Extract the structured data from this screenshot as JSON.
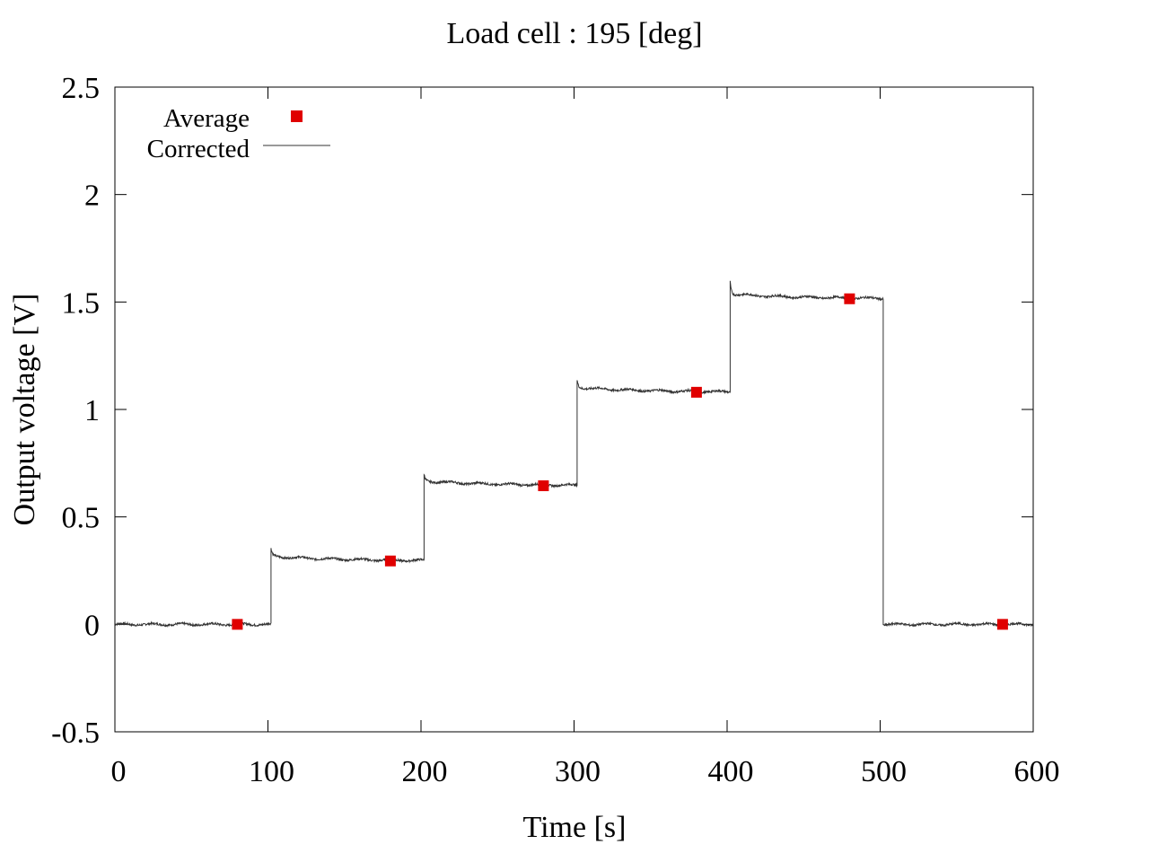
{
  "chart_data": {
    "type": "line",
    "title": "Load cell : 195 [deg]",
    "xlabel": "Time [s]",
    "ylabel": "Output voltage [V]",
    "xlim": [
      0,
      600
    ],
    "ylim": [
      -0.5,
      2.5
    ],
    "xticks": [
      0,
      100,
      200,
      300,
      400,
      500,
      600
    ],
    "yticks": [
      -0.5,
      0,
      0.5,
      1,
      1.5,
      2,
      2.5
    ],
    "xtick_labels": [
      "0",
      "100",
      "200",
      "300",
      "400",
      "500",
      "600"
    ],
    "ytick_labels": [
      "-0.5",
      "0",
      "0.5",
      "1",
      "1.5",
      "2",
      "2.5"
    ],
    "grid": false,
    "legend_position": "top-left",
    "series": [
      {
        "name": "Average",
        "type": "scatter",
        "marker": "square",
        "color": "#e00000",
        "x": [
          80,
          180,
          280,
          380,
          480,
          580
        ],
        "y": [
          0.0,
          0.295,
          0.645,
          1.08,
          1.515,
          0.0
        ]
      },
      {
        "name": "Corrected",
        "type": "line",
        "color": "#333333",
        "steps": [
          {
            "start": 0,
            "end": 102,
            "level": 0.0,
            "peak": null
          },
          {
            "start": 102,
            "end": 202,
            "level": 0.295,
            "peak": 0.355
          },
          {
            "start": 202,
            "end": 302,
            "level": 0.645,
            "peak": 0.695
          },
          {
            "start": 302,
            "end": 402,
            "level": 1.08,
            "peak": 1.14
          },
          {
            "start": 402,
            "end": 502,
            "level": 1.515,
            "peak": 1.615
          },
          {
            "start": 502,
            "end": 600,
            "level": 0.0,
            "peak": null
          }
        ]
      }
    ]
  }
}
